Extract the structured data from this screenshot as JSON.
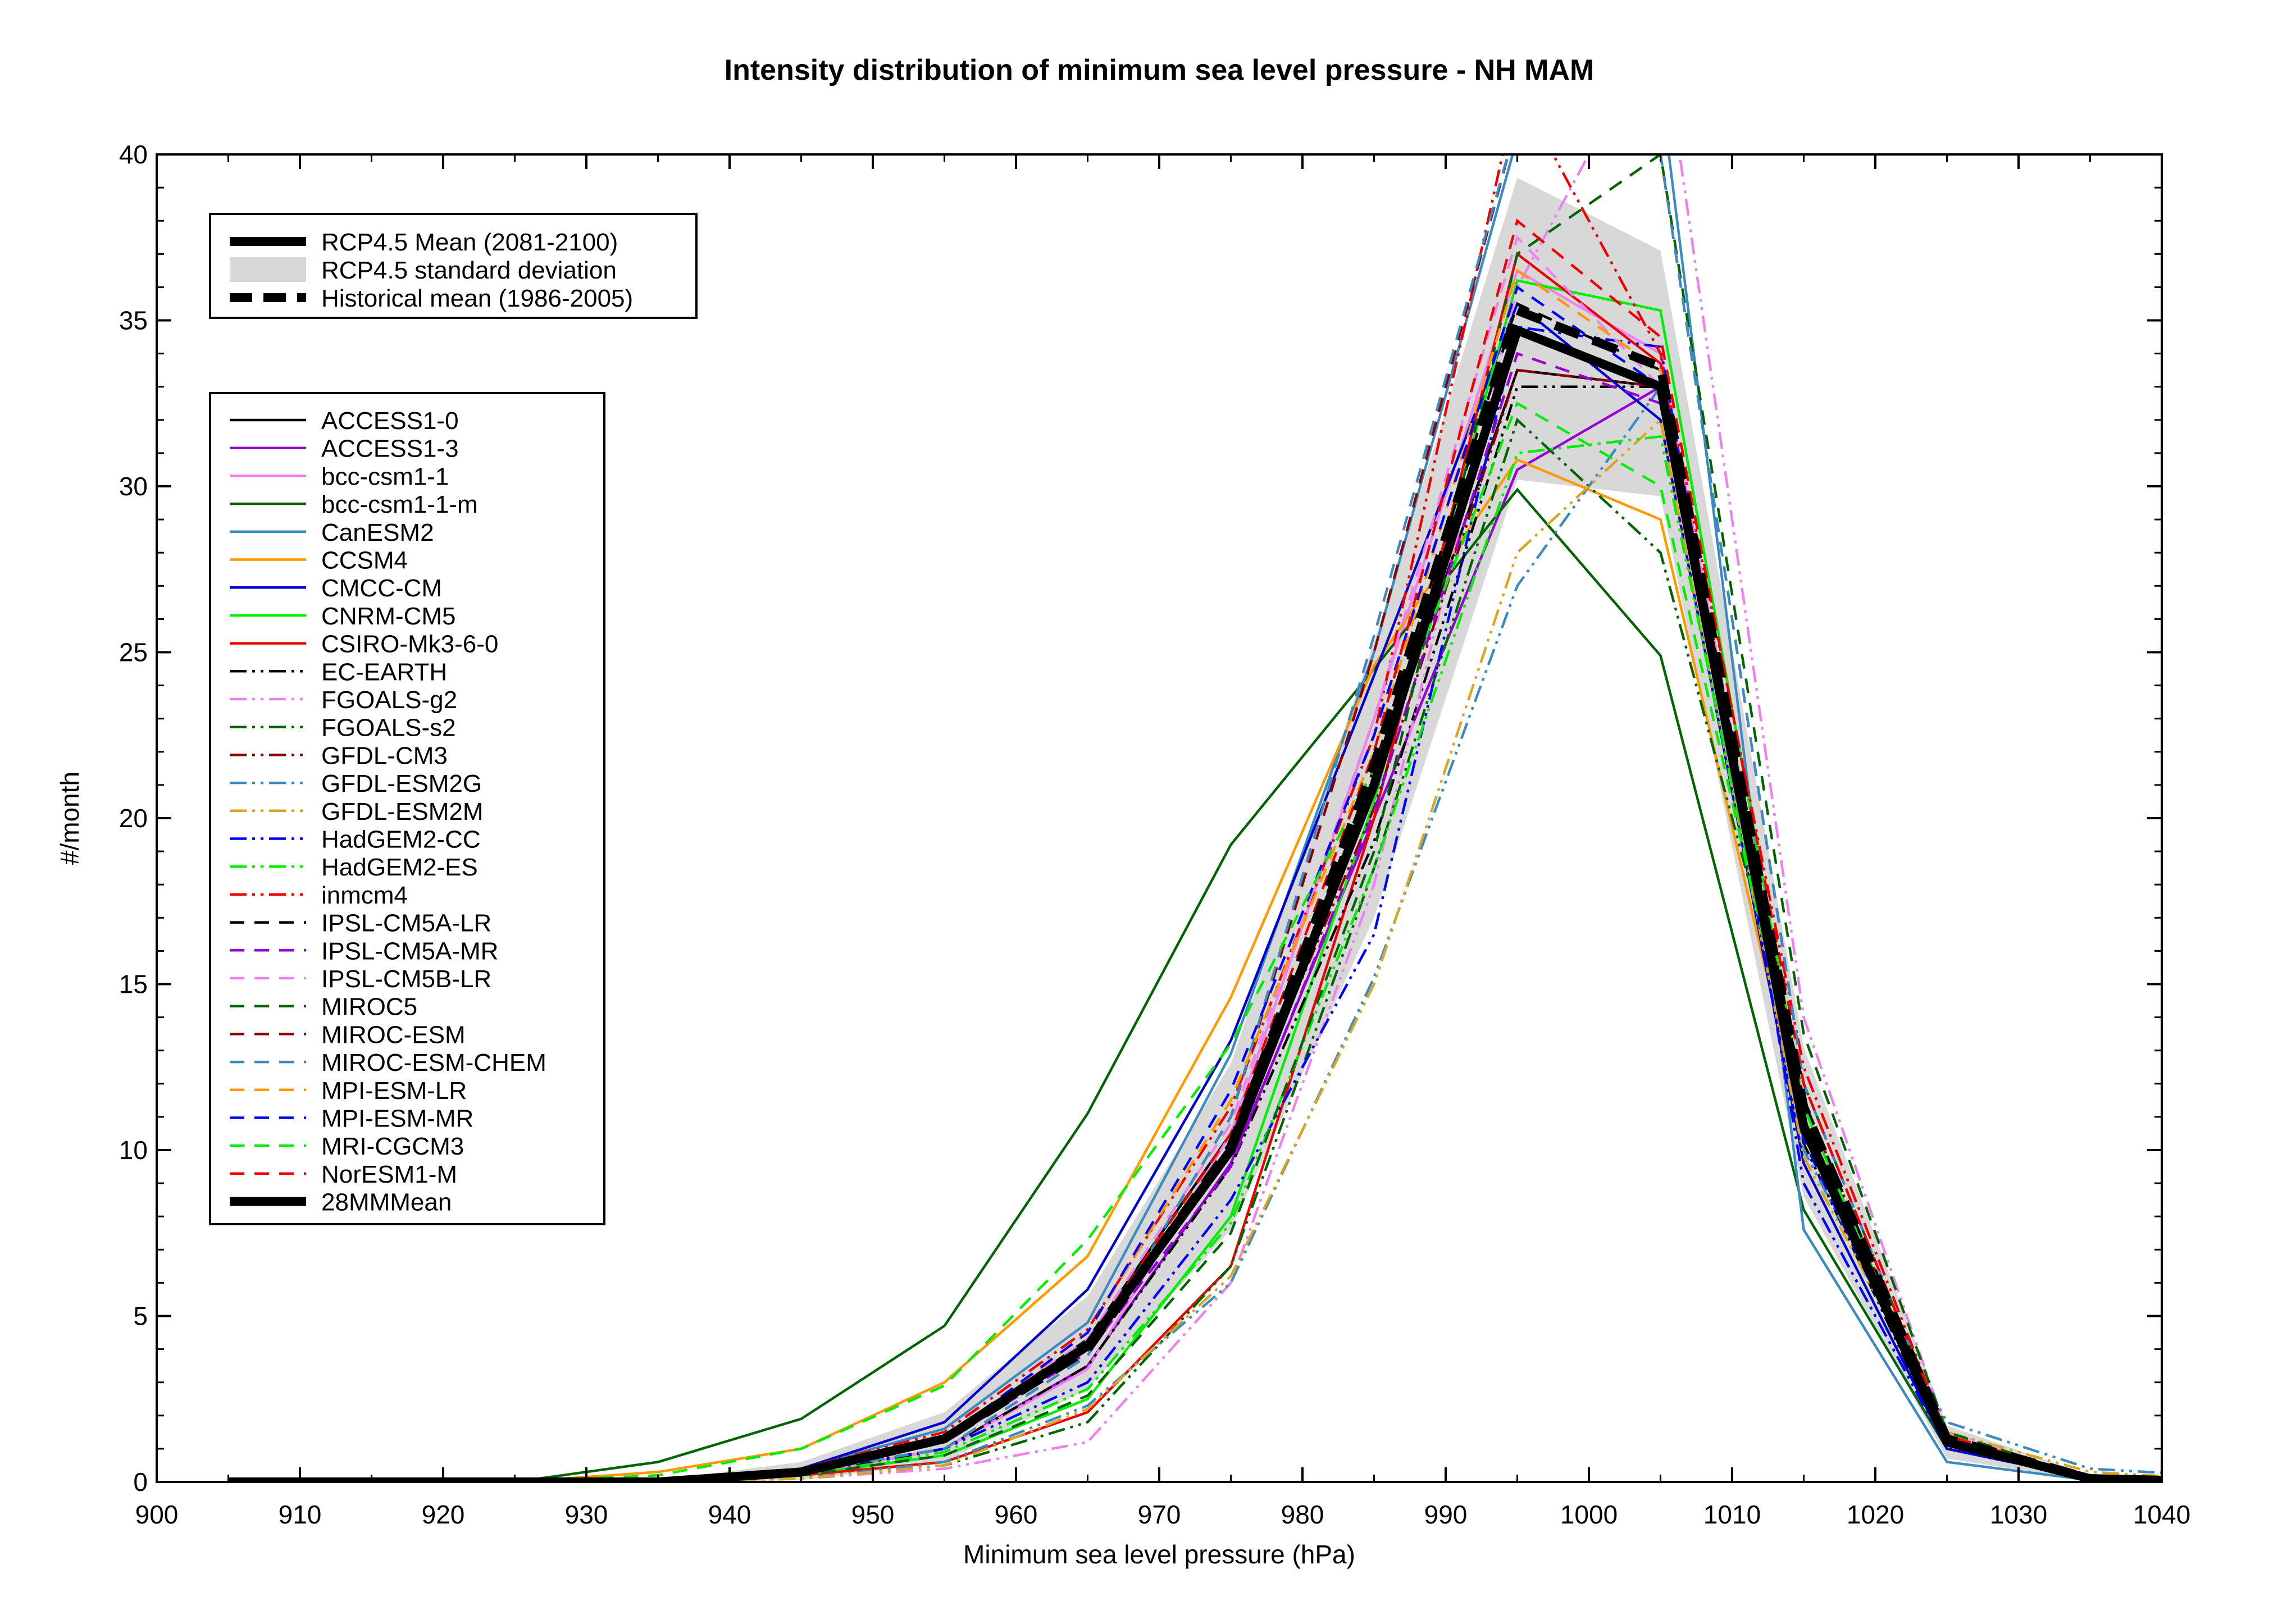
{
  "chart_data": {
    "type": "line",
    "title": "Intensity distribution of minimum sea level pressure - NH MAM",
    "xlabel": "Minimum sea level pressure (hPa)",
    "ylabel": "#/month",
    "xlim": [
      900,
      1040
    ],
    "ylim": [
      0,
      40
    ],
    "xticks": [
      "900",
      "910",
      "920",
      "930",
      "940",
      "950",
      "960",
      "970",
      "980",
      "990",
      "1000",
      "1010",
      "1020",
      "1030",
      "1040"
    ],
    "yticks": [
      "0",
      "5",
      "10",
      "15",
      "20",
      "25",
      "30",
      "35",
      "40"
    ],
    "x": [
      905,
      915,
      925,
      935,
      945,
      955,
      965,
      975,
      985,
      995,
      1005,
      1015,
      1025,
      1035,
      1045
    ],
    "legend_main": [
      {
        "name": "RCP4.5 Mean (2081-2100)",
        "style": "thick-solid"
      },
      {
        "name": "RCP4.5 standard deviation",
        "style": "band"
      },
      {
        "name": "Historical mean (1986-2005)",
        "style": "thick-dashed"
      }
    ],
    "rcp45_mean": [
      0,
      0,
      0,
      0,
      0.3,
      1.3,
      4.1,
      10.0,
      21.0,
      34.7,
      33.0,
      10.7,
      1.2,
      0.1,
      0
    ],
    "rcp45_std_upper": [
      0,
      0,
      0,
      0.05,
      0.6,
      2.1,
      5.6,
      12.6,
      25.3,
      39.3,
      37.1,
      13.1,
      1.7,
      0.2,
      0.05
    ],
    "rcp45_std_lower": [
      0,
      0,
      0,
      0,
      0.05,
      0.6,
      2.8,
      7.6,
      17.0,
      30.2,
      29.7,
      8.6,
      0.7,
      0.05,
      0
    ],
    "historical_mean": [
      0,
      0,
      0,
      0,
      0.3,
      1.3,
      4.0,
      10.1,
      21.6,
      35.3,
      33.6,
      11.3,
      1.3,
      0.1,
      0
    ],
    "series": [
      {
        "name": "ACCESS1-0",
        "color": "#000000",
        "dash": "solid",
        "values": [
          0,
          0,
          0,
          0,
          0.3,
          1.3,
          4.3,
          10.5,
          21.0,
          33.5,
          33.0,
          11.0,
          1.3,
          0.1,
          0
        ]
      },
      {
        "name": "ACCESS1-3",
        "color": "#9400d3",
        "dash": "solid",
        "values": [
          0,
          0,
          0,
          0,
          0.2,
          1.0,
          3.5,
          9.6,
          20.0,
          30.5,
          33.0,
          10.8,
          1.2,
          0.1,
          0
        ]
      },
      {
        "name": "bcc-csm1-1",
        "color": "#ee82ee",
        "dash": "solid",
        "values": [
          0,
          0,
          0,
          0,
          0.2,
          1.0,
          3.4,
          10.5,
          23.0,
          36.5,
          34.0,
          11.0,
          1.1,
          0.1,
          0
        ]
      },
      {
        "name": "bcc-csm1-1-m",
        "color": "#006400",
        "dash": "solid",
        "values": [
          0,
          0,
          0,
          0.6,
          1.9,
          4.7,
          11.1,
          19.2,
          24.5,
          29.9,
          24.9,
          8.2,
          1.0,
          0.1,
          0
        ]
      },
      {
        "name": "CanESM2",
        "color": "#3a8bbf",
        "dash": "solid",
        "values": [
          0,
          0,
          0,
          0,
          0.4,
          1.6,
          4.8,
          12.9,
          25.0,
          40.5,
          42.0,
          7.6,
          0.6,
          0.05,
          0
        ]
      },
      {
        "name": "CCSM4",
        "color": "#ff9900",
        "dash": "solid",
        "values": [
          0,
          0,
          0,
          0.3,
          1.0,
          3.0,
          6.8,
          14.6,
          24.6,
          30.8,
          29.0,
          10.5,
          1.1,
          0.1,
          0
        ]
      },
      {
        "name": "CMCC-CM",
        "color": "#0000cd",
        "dash": "solid",
        "values": [
          0,
          0,
          0,
          0,
          0.4,
          1.8,
          5.8,
          13.3,
          24.3,
          35.5,
          32.0,
          9.6,
          1.0,
          0.1,
          0
        ]
      },
      {
        "name": "CNRM-CM5",
        "color": "#00ee00",
        "dash": "solid",
        "values": [
          0,
          0,
          0,
          0,
          0.2,
          0.8,
          2.5,
          8.0,
          20.5,
          36.2,
          35.3,
          11.3,
          1.2,
          0.1,
          0
        ]
      },
      {
        "name": "CSIRO-Mk3-6-0",
        "color": "#ee0000",
        "dash": "solid",
        "values": [
          0,
          0,
          0,
          0,
          0.2,
          0.6,
          2.1,
          6.5,
          20.0,
          37.0,
          33.7,
          10.9,
          1.3,
          0.1,
          0
        ]
      },
      {
        "name": "EC-EARTH",
        "color": "#000000",
        "dash": "dashdotdot",
        "values": [
          0,
          0,
          0,
          0,
          0.2,
          1.0,
          3.5,
          9.5,
          19.3,
          33.0,
          33.0,
          10.2,
          1.0,
          0.1,
          0
        ]
      },
      {
        "name": "FGOALS-g2",
        "color": "#ee82ee",
        "dash": "dashdotdot",
        "values": [
          0,
          0,
          0,
          0,
          0.1,
          0.4,
          1.2,
          6.0,
          18.0,
          36.0,
          44.0,
          14.0,
          1.5,
          0.1,
          0
        ]
      },
      {
        "name": "FGOALS-s2",
        "color": "#006400",
        "dash": "dashdotdot",
        "values": [
          0,
          0,
          0,
          0,
          0.1,
          0.5,
          1.8,
          6.5,
          18.5,
          32.0,
          28.0,
          12.0,
          1.3,
          0.1,
          0
        ]
      },
      {
        "name": "GFDL-CM3",
        "color": "#8b0000",
        "dash": "dashdotdot",
        "values": [
          0,
          0,
          0,
          0,
          0.3,
          1.3,
          4.0,
          10.1,
          20.3,
          33.5,
          33.0,
          11.5,
          1.2,
          0.1,
          0
        ]
      },
      {
        "name": "GFDL-ESM2G",
        "color": "#3a8bbf",
        "dash": "dashdotdot",
        "values": [
          0,
          0,
          0,
          0,
          0.1,
          0.6,
          2.3,
          6.0,
          15.2,
          27.0,
          33.0,
          10.0,
          1.8,
          0.4,
          0.15
        ]
      },
      {
        "name": "GFDL-ESM2M",
        "color": "#daa520",
        "dash": "dashdotdot",
        "values": [
          0,
          0,
          0,
          0,
          0.1,
          0.5,
          2.2,
          6.2,
          15.0,
          28.0,
          32.0,
          9.8,
          1.5,
          0.3,
          0.05
        ]
      },
      {
        "name": "HadGEM2-CC",
        "color": "#0000ff",
        "dash": "dashdotdot",
        "values": [
          0,
          0,
          0,
          0,
          0.3,
          1.0,
          3.0,
          8.5,
          16.5,
          34.8,
          34.2,
          9.0,
          1.0,
          0.1,
          0
        ]
      },
      {
        "name": "HadGEM2-ES",
        "color": "#00ee00",
        "dash": "dashdotdot",
        "values": [
          0,
          0,
          0,
          0,
          0.2,
          0.9,
          2.8,
          7.8,
          18.5,
          31.0,
          31.5,
          10.5,
          1.1,
          0.1,
          0
        ]
      },
      {
        "name": "inmcm4",
        "color": "#ee0000",
        "dash": "dashdotdot",
        "values": [
          0,
          0,
          0,
          0,
          0.4,
          1.5,
          4.6,
          11.3,
          22.5,
          42.0,
          34.0,
          12.5,
          1.4,
          0.1,
          0
        ]
      },
      {
        "name": "IPSL-CM5A-LR",
        "color": "#000000",
        "dash": "dashed",
        "values": [
          0,
          0,
          0,
          0,
          0.3,
          1.2,
          4.2,
          10.0,
          21.5,
          35.5,
          33.5,
          11.5,
          1.3,
          0.1,
          0
        ]
      },
      {
        "name": "IPSL-CM5A-MR",
        "color": "#9400d3",
        "dash": "dashed",
        "values": [
          0,
          0,
          0,
          0,
          0.3,
          1.2,
          3.9,
          9.5,
          20.2,
          34.0,
          32.5,
          11.0,
          1.2,
          0.1,
          0
        ]
      },
      {
        "name": "IPSL-CM5B-LR",
        "color": "#ee82ee",
        "dash": "dashed",
        "values": [
          0,
          0,
          0,
          0,
          0.4,
          1.4,
          4.3,
          10.8,
          23.0,
          37.5,
          33.0,
          10.5,
          1.1,
          0.1,
          0
        ]
      },
      {
        "name": "MIROC5",
        "color": "#006400",
        "dash": "dashed",
        "values": [
          0,
          0,
          0,
          0,
          0.2,
          0.8,
          2.6,
          7.5,
          19.0,
          37.0,
          40.0,
          13.5,
          1.5,
          0.1,
          0
        ]
      },
      {
        "name": "MIROC-ESM",
        "color": "#8b0000",
        "dash": "dashed",
        "values": [
          0,
          0,
          0,
          0,
          0.3,
          1.0,
          3.8,
          11.0,
          25.0,
          41.0,
          40.0,
          12.0,
          1.3,
          0.1,
          0
        ]
      },
      {
        "name": "MIROC-ESM-CHEM",
        "color": "#3a8bbf",
        "dash": "dashed",
        "values": [
          0,
          0,
          0,
          0,
          0.3,
          1.0,
          3.8,
          11.0,
          25.5,
          41.0,
          40.0,
          12.0,
          1.3,
          0.1,
          0
        ]
      },
      {
        "name": "MPI-ESM-LR",
        "color": "#ff9900",
        "dash": "dashed",
        "values": [
          0,
          0,
          0,
          0,
          0.3,
          1.2,
          4.5,
          11.5,
          22.0,
          36.5,
          33.5,
          10.5,
          1.1,
          0.1,
          0
        ]
      },
      {
        "name": "MPI-ESM-MR",
        "color": "#0000ff",
        "dash": "dashed",
        "values": [
          0,
          0,
          0,
          0,
          0.3,
          1.3,
          4.5,
          11.8,
          22.5,
          36.0,
          33.0,
          10.3,
          1.1,
          0.1,
          0
        ]
      },
      {
        "name": "MRI-CGCM3",
        "color": "#00ee00",
        "dash": "dashed",
        "values": [
          0,
          0,
          0,
          0.2,
          1.0,
          2.9,
          7.3,
          13.2,
          21.5,
          32.5,
          30.0,
          11.0,
          1.2,
          0.1,
          0
        ]
      },
      {
        "name": "NorESM1-M",
        "color": "#ee0000",
        "dash": "dashed",
        "values": [
          0,
          0,
          0,
          0,
          0.3,
          1.2,
          4.2,
          10.5,
          22.0,
          38.0,
          34.5,
          12.0,
          1.3,
          0.1,
          0
        ]
      },
      {
        "name": "28MMMean",
        "color": "#000000",
        "dash": "thick-solid",
        "values": [
          0,
          0,
          0,
          0,
          0.3,
          1.3,
          4.1,
          10.0,
          21.0,
          34.7,
          33.0,
          10.7,
          1.2,
          0.1,
          0
        ]
      }
    ]
  }
}
